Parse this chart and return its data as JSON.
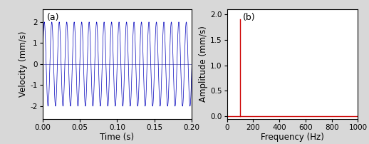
{
  "fig_width": 5.18,
  "fig_height": 2.02,
  "dpi": 100,
  "left_panel": {
    "label": "(a)",
    "xlabel": "Time (s)",
    "ylabel": "Velocity (mm/s)",
    "xlim": [
      0.0,
      0.2
    ],
    "ylim": [
      -2.6,
      2.6
    ],
    "yticks": [
      -2,
      -1,
      0,
      1,
      2
    ],
    "xticks": [
      0.0,
      0.05,
      0.1,
      0.15,
      0.2
    ],
    "xtick_labels": [
      "0.00",
      "0.05",
      "0.10",
      "0.15",
      "0.20"
    ],
    "signal_color": "#0000bb",
    "frequency": 100,
    "amplitude": 2.0,
    "duration": 0.2,
    "sample_rate": 20000,
    "hline_color": "#5555aa",
    "hline_lw": 0.5
  },
  "right_panel": {
    "label": "(b)",
    "xlabel": "Frequency (Hz)",
    "ylabel": "Amplitude (mm/s)",
    "xlim": [
      0,
      1000
    ],
    "ylim": [
      -0.05,
      2.1
    ],
    "yticks": [
      0.0,
      0.5,
      1.0,
      1.5,
      2.0
    ],
    "xticks": [
      0,
      200,
      400,
      600,
      800,
      1000
    ],
    "spike_freq": 100,
    "spike_amp": 1.9,
    "line_color": "#cc0000",
    "line_lw": 1.0
  },
  "background_color": "#d8d8d8",
  "panel_background": "#ffffff",
  "label_fontsize": 9,
  "tick_fontsize": 7.5,
  "axis_label_fontsize": 8.5
}
